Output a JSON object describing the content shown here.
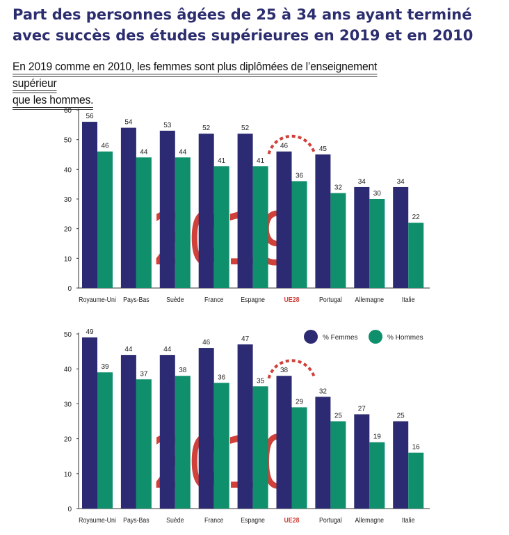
{
  "title": "Part des personnes âgées de 25 à 34 ans ayant terminé avec succès des études supérieures en 2019 et en 2010",
  "subtitle_line1": "En 2019 comme en 2010, les femmes sont plus diplômées de l’enseignement supérieur",
  "subtitle_line2": "que les hommes.",
  "colors": {
    "femmes": "#2b2a72",
    "hommes": "#0f8f6c",
    "highlight": "#d0413a",
    "watermark": "#d0413a"
  },
  "chart_data": [
    {
      "type": "bar",
      "year_label": "2019",
      "categories": [
        "Royaume-Uni",
        "Pays-Bas",
        "Suède",
        "France",
        "Espagne",
        "UE28",
        "Portugal",
        "Allemagne",
        "Italie"
      ],
      "highlight_category": "UE28",
      "series": [
        {
          "values": [
            56,
            54,
            53,
            52,
            52,
            46,
            45,
            34,
            34
          ]
        },
        {
          "values": [
            46,
            44,
            44,
            41,
            41,
            36,
            32,
            30,
            22
          ]
        }
      ],
      "ylim": [
        0,
        60
      ],
      "yticks": [
        0,
        10,
        20,
        30,
        40,
        50,
        60
      ],
      "grid": false
    },
    {
      "type": "bar",
      "year_label": "2010",
      "categories": [
        "Royaume-Uni",
        "Pays-Bas",
        "Suède",
        "France",
        "Espagne",
        "UE28",
        "Portugal",
        "Allemagne",
        "Italie"
      ],
      "highlight_category": "UE28",
      "series": [
        {
          "name": "% Femmes",
          "values": [
            49,
            44,
            44,
            46,
            47,
            38,
            32,
            27,
            25
          ]
        },
        {
          "name": "% Hommes",
          "values": [
            39,
            37,
            38,
            36,
            35,
            29,
            25,
            19,
            16
          ]
        }
      ],
      "ylim": [
        0,
        50
      ],
      "yticks": [
        0,
        10,
        20,
        30,
        40,
        50
      ],
      "grid": false,
      "legend": "top-right"
    }
  ]
}
